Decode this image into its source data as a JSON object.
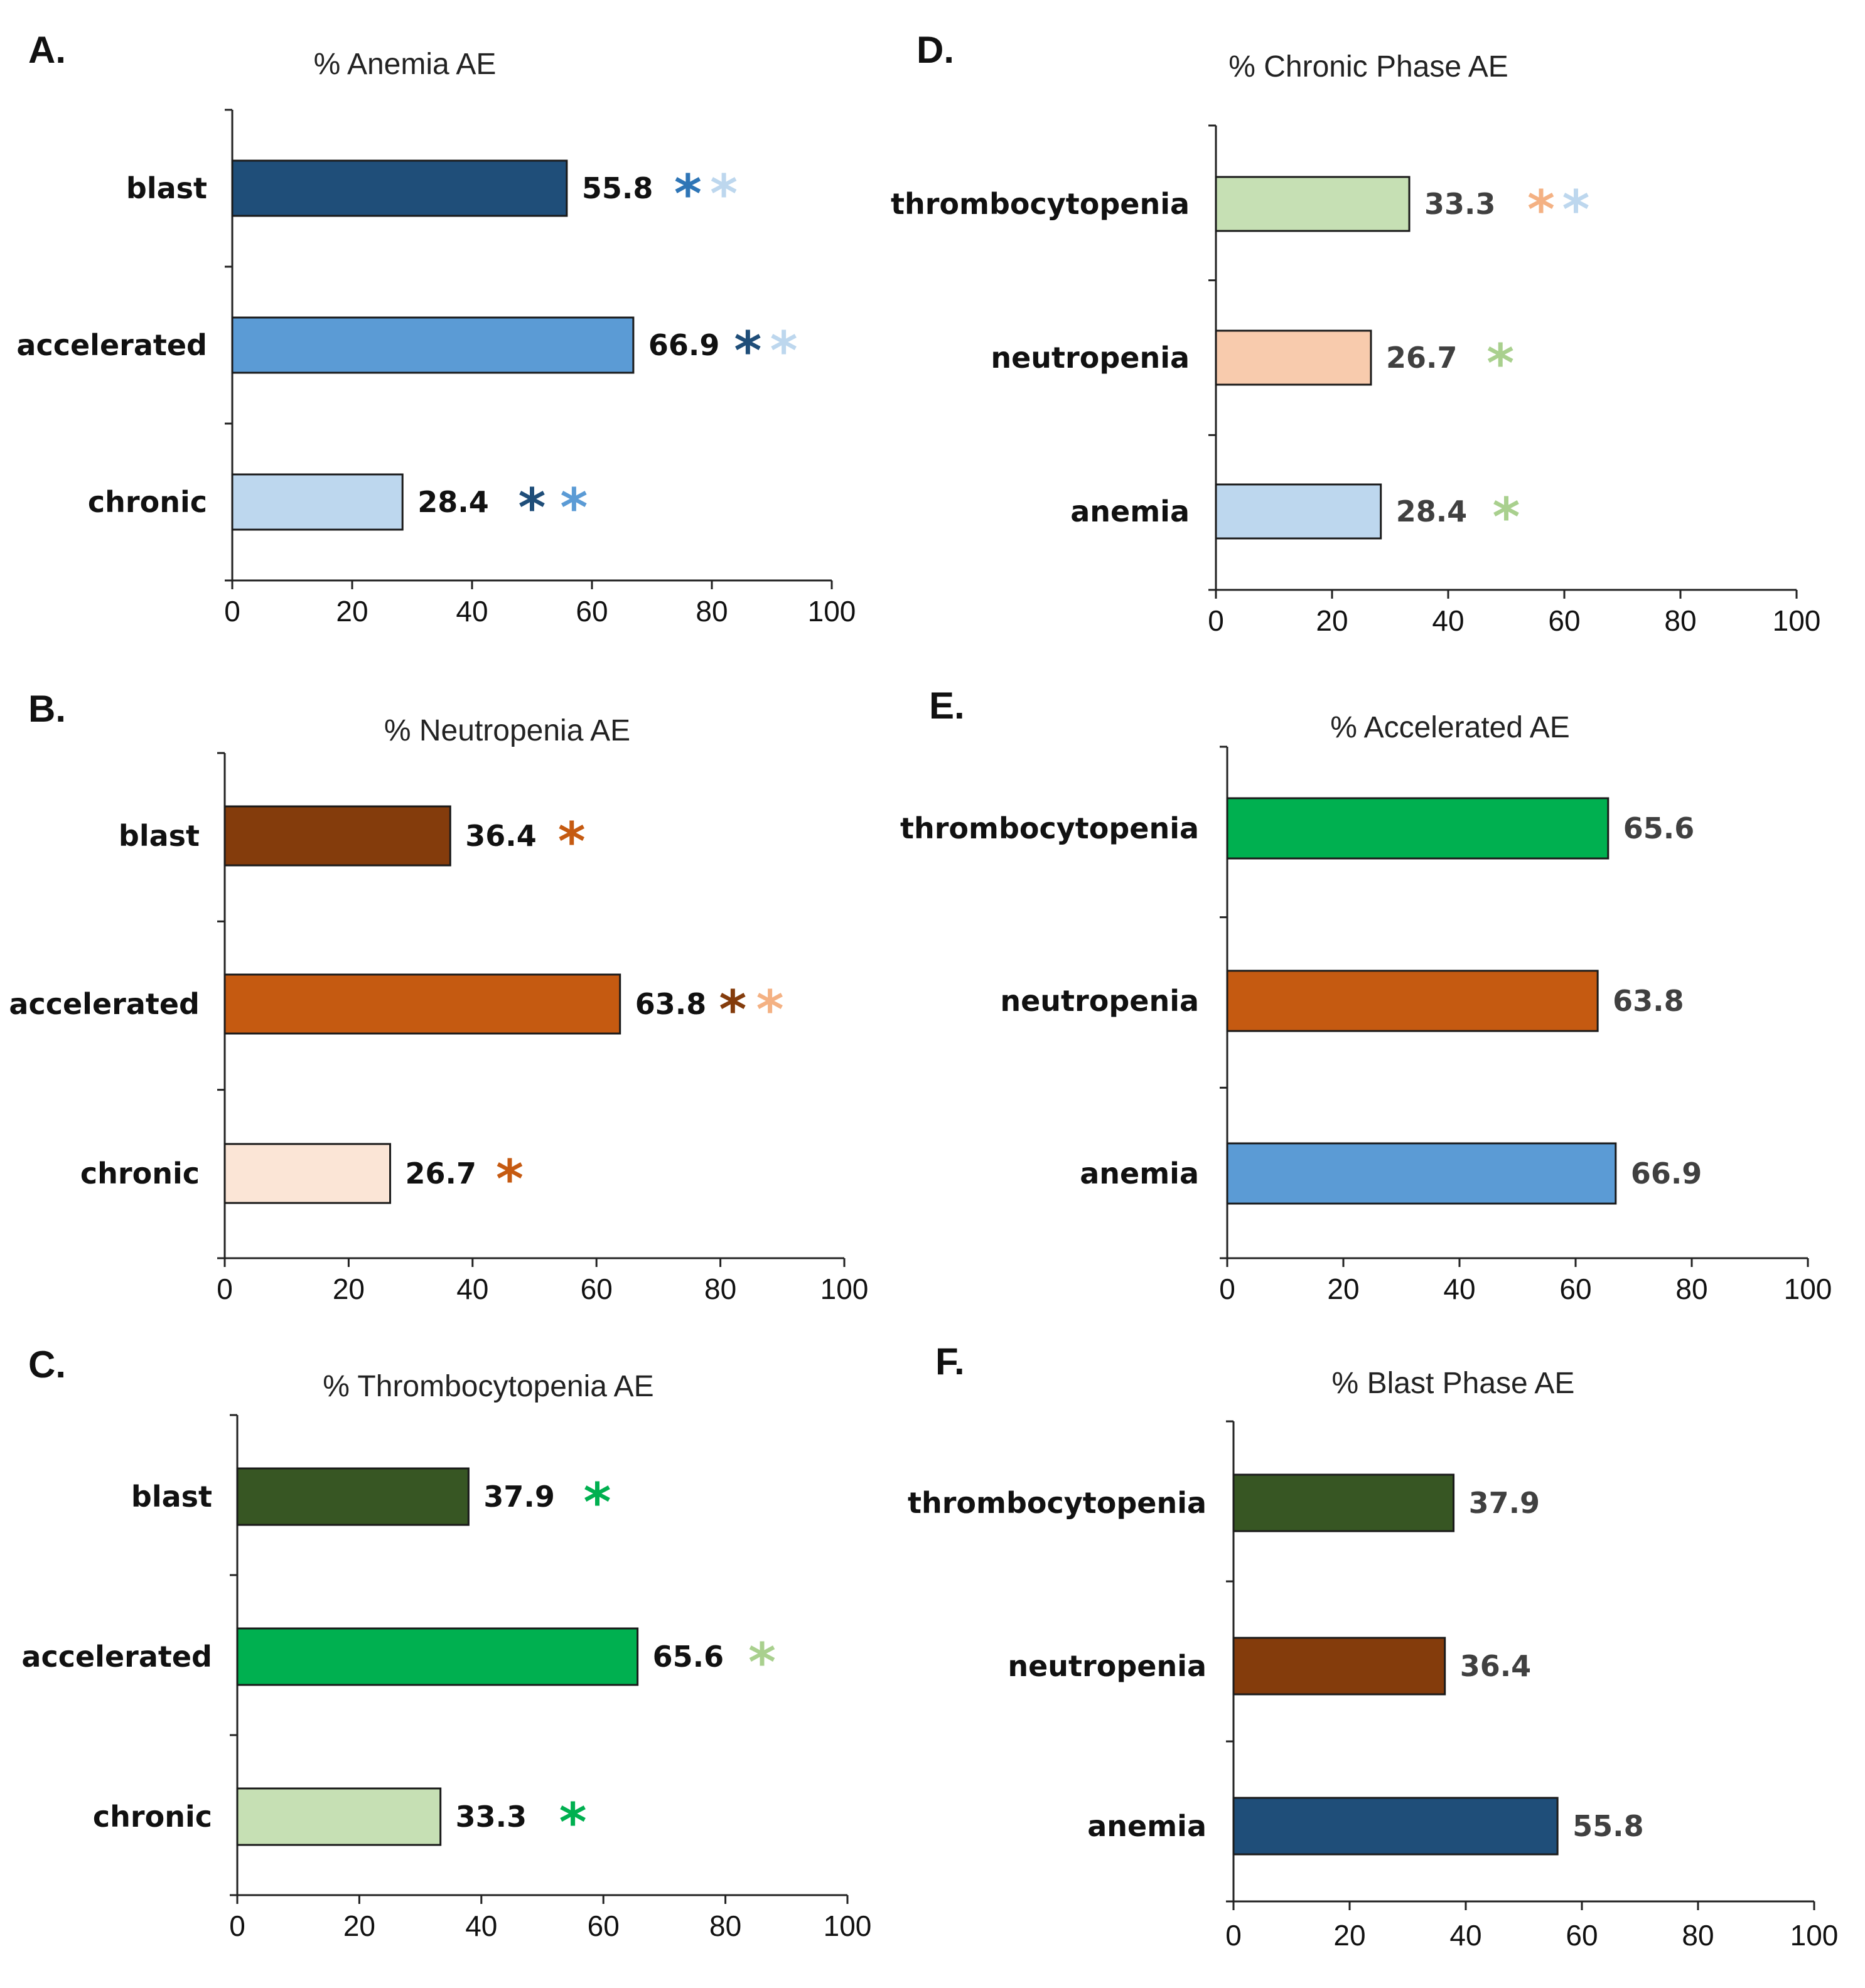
{
  "chart_data": [
    {
      "panel": "A.",
      "type": "bar",
      "orientation": "horizontal",
      "title": "% Anemia AE",
      "categories": [
        "blast",
        "accelerated",
        "chronic"
      ],
      "values": [
        55.8,
        66.9,
        28.4
      ],
      "value_labels": [
        "55.8",
        "66.9",
        "28.4"
      ],
      "bar_colors": [
        "#1f4e79",
        "#5b9bd5",
        "#bdd7ee"
      ],
      "value_label_color": "#111111",
      "significance_markers": [
        [
          {
            "symbol": "*",
            "color": "#2e75b6",
            "at": 76
          },
          {
            "symbol": "*",
            "color": "#bdd7ee",
            "at": 82
          }
        ],
        [
          {
            "symbol": "*",
            "color": "#1f4e79",
            "at": 86
          },
          {
            "symbol": "*",
            "color": "#bdd7ee",
            "at": 92
          }
        ],
        [
          {
            "symbol": "*",
            "color": "#1f4e79",
            "at": 50
          },
          {
            "symbol": "*",
            "color": "#5b9bd5",
            "at": 57
          }
        ]
      ],
      "xlim": [
        0,
        100
      ],
      "xticks": [
        0,
        20,
        40,
        60,
        80,
        100
      ],
      "xtick_labels": [
        "0",
        "20",
        "40",
        "60",
        "80",
        "100"
      ]
    },
    {
      "panel": "B.",
      "type": "bar",
      "orientation": "horizontal",
      "title": "% Neutropenia AE",
      "categories": [
        "blast",
        "accelerated",
        "chronic"
      ],
      "values": [
        36.4,
        63.8,
        26.7
      ],
      "value_labels": [
        "36.4",
        "63.8",
        "26.7"
      ],
      "bar_colors": [
        "#843c0c",
        "#c55a11",
        "#fbe5d6"
      ],
      "value_label_color": "#111111",
      "significance_markers": [
        [
          {
            "symbol": "*",
            "color": "#c55a11",
            "at": 56
          }
        ],
        [
          {
            "symbol": "*",
            "color": "#843c0c",
            "at": 82
          },
          {
            "symbol": "*",
            "color": "#f4b183",
            "at": 88
          }
        ],
        [
          {
            "symbol": "*",
            "color": "#c55a11",
            "at": 46
          }
        ]
      ],
      "xlim": [
        0,
        100
      ],
      "xticks": [
        0,
        20,
        40,
        60,
        80,
        100
      ],
      "xtick_labels": [
        "0",
        "20",
        "40",
        "60",
        "80",
        "100"
      ]
    },
    {
      "panel": "C.",
      "type": "bar",
      "orientation": "horizontal",
      "title": "% Thrombocytopenia  AE",
      "categories": [
        "blast",
        "accelerated",
        "chronic"
      ],
      "values": [
        37.9,
        65.6,
        33.3
      ],
      "value_labels": [
        "37.9",
        "65.6",
        "33.3"
      ],
      "bar_colors": [
        "#375623",
        "#00b050",
        "#c6e0b4"
      ],
      "value_label_color": "#111111",
      "significance_markers": [
        [
          {
            "symbol": "*",
            "color": "#00b050",
            "at": 59
          }
        ],
        [
          {
            "symbol": "*",
            "color": "#a9d08e",
            "at": 86
          }
        ],
        [
          {
            "symbol": "*",
            "color": "#00b050",
            "at": 55
          }
        ]
      ],
      "xlim": [
        0,
        100
      ],
      "xticks": [
        0,
        20,
        40,
        60,
        80,
        100
      ],
      "xtick_labels": [
        "0",
        "20",
        "40",
        "60",
        "80",
        "100"
      ]
    },
    {
      "panel": "D.",
      "type": "bar",
      "orientation": "horizontal",
      "title": "% Chronic Phase AE",
      "categories": [
        "thrombocytopenia",
        "neutropenia",
        "anemia"
      ],
      "values": [
        33.3,
        26.7,
        28.4
      ],
      "value_labels": [
        "33.3",
        "26.7",
        "28.4"
      ],
      "bar_colors": [
        "#c6e0b4",
        "#f8cbad",
        "#bdd7ee"
      ],
      "value_label_color": "#404040",
      "significance_markers": [
        [
          {
            "symbol": "*",
            "color": "#f4b183",
            "at": 56
          },
          {
            "symbol": "*",
            "color": "#bdd7ee",
            "at": 62
          }
        ],
        [
          {
            "symbol": "*",
            "color": "#a9d08e",
            "at": 49
          }
        ],
        [
          {
            "symbol": "*",
            "color": "#a9d08e",
            "at": 50
          }
        ]
      ],
      "xlim": [
        0,
        100
      ],
      "xticks": [
        0,
        20,
        40,
        60,
        80,
        100
      ],
      "xtick_labels": [
        "0",
        "20",
        "40",
        "60",
        "80",
        "100"
      ]
    },
    {
      "panel": "E.",
      "type": "bar",
      "orientation": "horizontal",
      "title": "% Accelerated  AE",
      "categories": [
        "thrombocytopenia",
        "neutropenia",
        "anemia"
      ],
      "values": [
        65.6,
        63.8,
        66.9
      ],
      "value_labels": [
        "65.6",
        "63.8",
        "66.9"
      ],
      "bar_colors": [
        "#00b050",
        "#c55a11",
        "#5b9bd5"
      ],
      "value_label_color": "#404040",
      "significance_markers": [
        [],
        [],
        []
      ],
      "xlim": [
        0,
        100
      ],
      "xticks": [
        0,
        20,
        40,
        60,
        80,
        100
      ],
      "xtick_labels": [
        "0",
        "20",
        "40",
        "60",
        "80",
        "100"
      ]
    },
    {
      "panel": "F.",
      "type": "bar",
      "orientation": "horizontal",
      "title": "% Blast Phase AE",
      "categories": [
        "thrombocytopenia",
        "neutropenia",
        "anemia"
      ],
      "values": [
        37.9,
        36.4,
        55.8
      ],
      "value_labels": [
        "37.9",
        "36.4",
        "55.8"
      ],
      "bar_colors": [
        "#375623",
        "#843c0c",
        "#1f4e79"
      ],
      "value_label_color": "#404040",
      "significance_markers": [
        [],
        [],
        []
      ],
      "xlim": [
        0,
        100
      ],
      "xticks": [
        0,
        20,
        40,
        60,
        80,
        100
      ],
      "xtick_labels": [
        "0",
        "20",
        "40",
        "60",
        "80",
        "100"
      ]
    }
  ]
}
